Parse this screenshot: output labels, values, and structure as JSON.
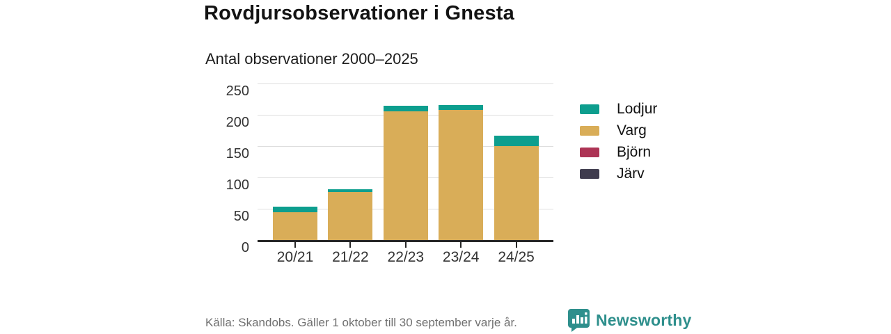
{
  "header": {},
  "chart_data": {
    "type": "bar",
    "stacked": true,
    "title": "Rovdjursobservationer i Gnesta",
    "subtitle": "Antal observationer 2000–2025",
    "categories": [
      "20/21",
      "21/22",
      "22/23",
      "23/24",
      "24/25"
    ],
    "series": [
      {
        "name": "Lodjur",
        "color": "#0d9e8e",
        "values": [
          8,
          4,
          8,
          8,
          17
        ]
      },
      {
        "name": "Varg",
        "color": "#d9ad58",
        "values": [
          45,
          77,
          206,
          208,
          150
        ]
      },
      {
        "name": "Björn",
        "color": "#ad3455",
        "values": [
          0,
          0,
          0,
          0,
          0
        ]
      },
      {
        "name": "Järv",
        "color": "#3f3c4e",
        "values": [
          0,
          0,
          0,
          0,
          0
        ]
      }
    ],
    "totals": [
      53,
      81,
      214,
      216,
      167
    ],
    "ylim": [
      0,
      250
    ],
    "yticks": [
      0,
      50,
      100,
      150,
      200,
      250
    ],
    "xlabel": "",
    "ylabel": "",
    "grid": true,
    "legend_position": "right"
  },
  "footer": {
    "source": "Källa: Skandobs. Gäller 1 oktober till 30 september varje år.",
    "brand": "Newsworthy",
    "brand_color": "#2e8f8c",
    "logo_icon": "speech-bubble-bar-chart"
  }
}
